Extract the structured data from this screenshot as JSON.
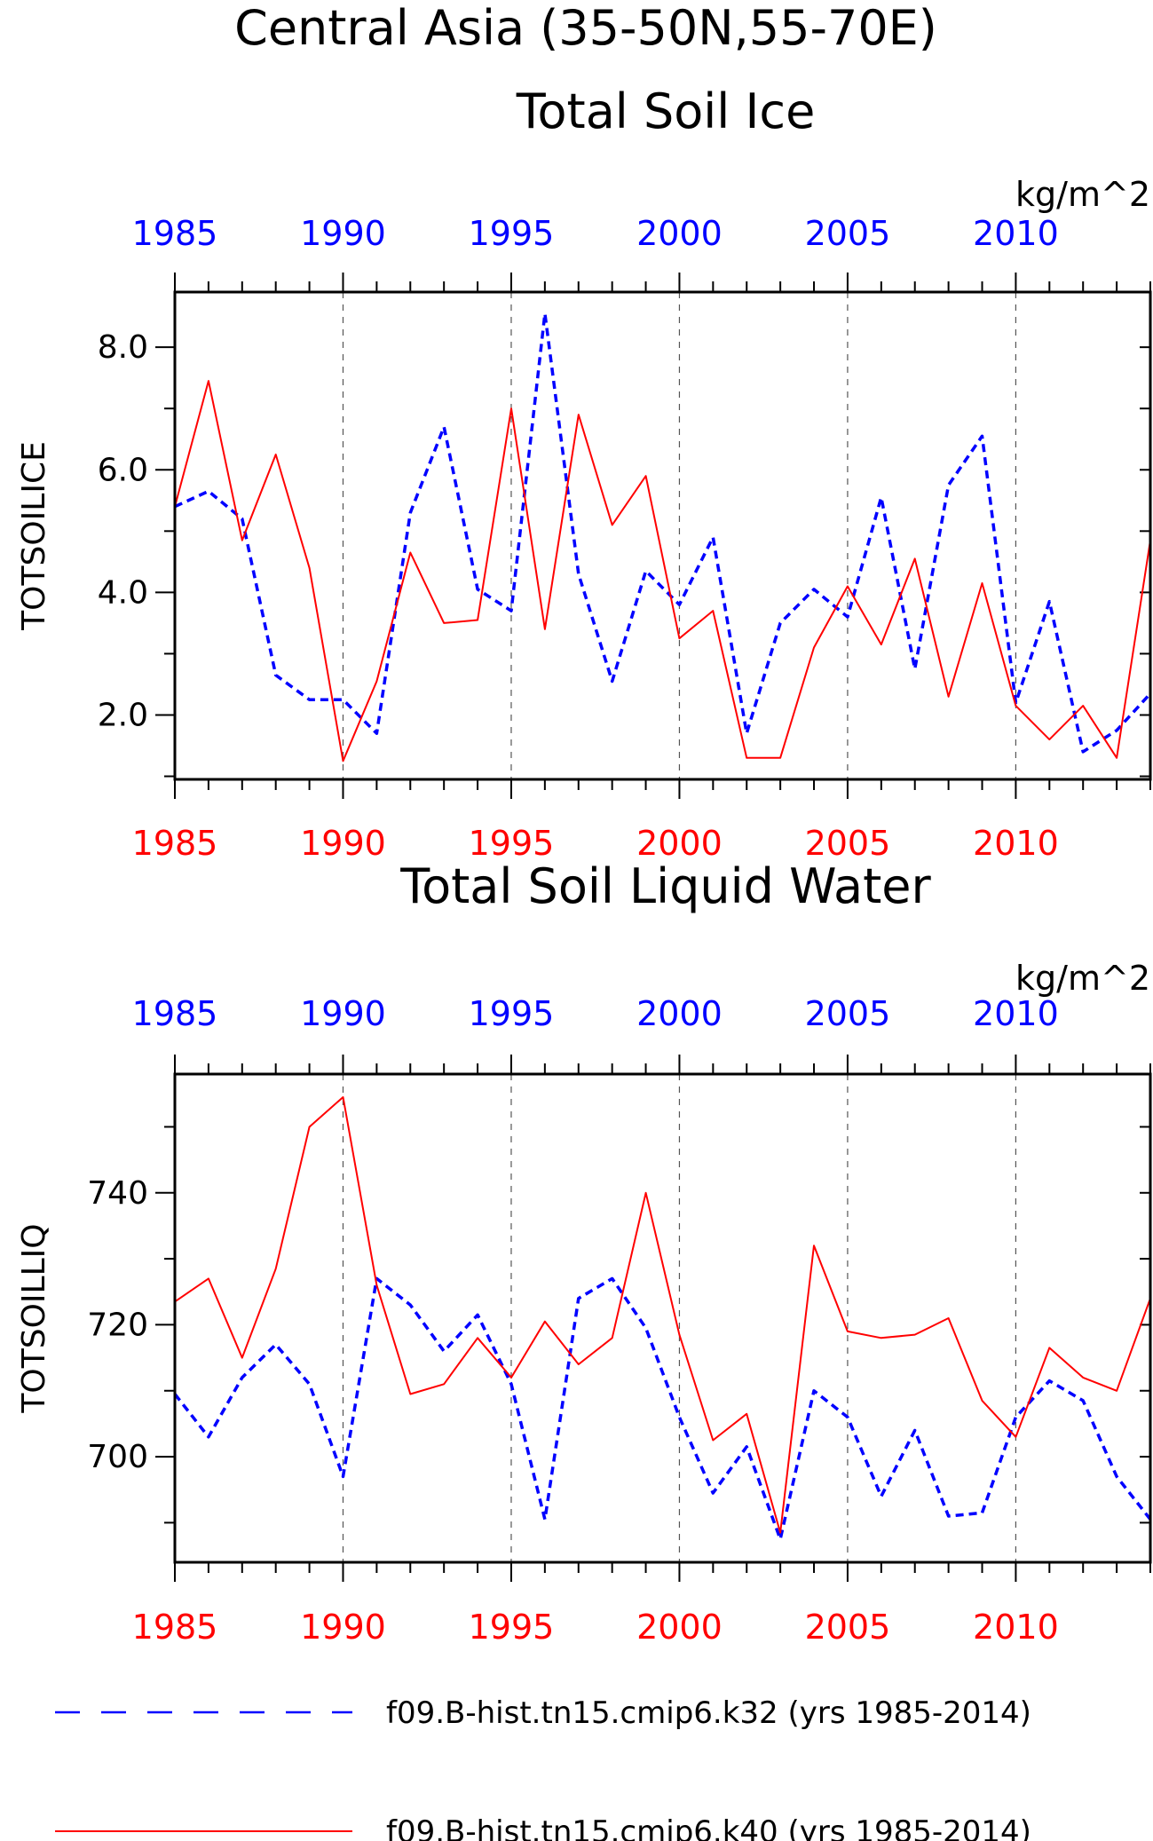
{
  "title": "Central Asia (35-50N,55-70E)",
  "colors": {
    "k32": "#0000ff",
    "k40": "#ff0000",
    "axis": "#000000",
    "grid": "#555555"
  },
  "chart_data": [
    {
      "type": "line",
      "title": "Total Soil Ice",
      "units": "kg/m^2",
      "ylabel": "TOTSOILICE",
      "xlim": [
        1985,
        2014
      ],
      "ylim": [
        0.95,
        8.9
      ],
      "yticks": [
        "2.0",
        "4.0",
        "6.0",
        "8.0"
      ],
      "xticks": [
        "1985",
        "1990",
        "1995",
        "2000",
        "2005",
        "2010"
      ],
      "grid": "vertical dashed lines at 1990, 1995, 2000, 2005, 2010",
      "x": [
        1985,
        1986,
        1987,
        1988,
        1989,
        1990,
        1991,
        1992,
        1993,
        1994,
        1995,
        1996,
        1997,
        1998,
        1999,
        2000,
        2001,
        2002,
        2003,
        2004,
        2005,
        2006,
        2007,
        2008,
        2009,
        2010,
        2011,
        2012,
        2013,
        2014
      ],
      "series": [
        {
          "name": "f09.B-hist.tn15.cmip6.k32 (yrs 1985-2014)",
          "style": "dashed",
          "color": "#0000ff",
          "values": [
            5.4,
            5.65,
            5.2,
            2.65,
            2.25,
            2.25,
            1.7,
            5.3,
            6.7,
            4.05,
            3.7,
            8.55,
            4.3,
            2.55,
            4.35,
            3.8,
            4.9,
            1.7,
            3.5,
            4.05,
            3.6,
            5.55,
            2.75,
            5.75,
            6.55,
            2.2,
            3.85,
            1.4,
            1.75,
            2.35
          ]
        },
        {
          "name": "f09.B-hist.tn15.cmip6.k40 (yrs 1985-2014)",
          "style": "solid",
          "color": "#ff0000",
          "values": [
            5.4,
            7.45,
            4.85,
            6.25,
            4.4,
            1.25,
            2.55,
            4.65,
            3.5,
            3.55,
            7.0,
            3.4,
            6.9,
            5.1,
            5.9,
            3.25,
            3.7,
            1.3,
            1.3,
            3.1,
            4.1,
            3.15,
            4.55,
            2.3,
            4.15,
            2.15,
            1.6,
            2.15,
            1.3,
            4.85
          ]
        }
      ]
    },
    {
      "type": "line",
      "title": "Total Soil Liquid Water",
      "units": "kg/m^2",
      "ylabel": "TOTSOILLIQ",
      "xlim": [
        1985,
        2014
      ],
      "ylim": [
        684,
        758
      ],
      "yticks": [
        "700",
        "720",
        "740"
      ],
      "xticks": [
        "1985",
        "1990",
        "1995",
        "2000",
        "2005",
        "2010"
      ],
      "grid": "vertical dashed lines at 1990, 1995, 2000, 2005, 2010",
      "x": [
        1985,
        1986,
        1987,
        1988,
        1989,
        1990,
        1991,
        1992,
        1993,
        1994,
        1995,
        1996,
        1997,
        1998,
        1999,
        2000,
        2001,
        2002,
        2003,
        2004,
        2005,
        2006,
        2007,
        2008,
        2009,
        2010,
        2011,
        2012,
        2013,
        2014
      ],
      "series": [
        {
          "name": "f09.B-hist.tn15.cmip6.k32 (yrs 1985-2014)",
          "style": "dashed",
          "color": "#0000ff",
          "values": [
            709.5,
            703,
            712,
            717,
            711,
            697,
            727,
            723,
            716,
            721.5,
            711,
            690.5,
            724,
            727,
            719.5,
            706,
            694.5,
            701.5,
            687.5,
            710,
            706,
            694,
            704,
            691,
            691.5,
            706,
            711.5,
            708.5,
            697,
            690.5
          ]
        },
        {
          "name": "f09.B-hist.tn15.cmip6.k40 (yrs 1985-2014)",
          "style": "solid",
          "color": "#ff0000",
          "values": [
            723.5,
            727,
            715,
            728.5,
            750,
            754.5,
            726,
            709.5,
            711,
            718,
            712,
            720.5,
            714,
            718,
            740,
            718.5,
            702.5,
            706.5,
            688.5,
            732,
            719,
            718,
            718.5,
            721,
            708.5,
            703,
            716.5,
            712,
            710,
            724
          ]
        }
      ]
    }
  ],
  "legend": [
    {
      "label": "f09.B-hist.tn15.cmip6.k32 (yrs 1985-2014)",
      "style": "dashed",
      "color": "#0000ff"
    },
    {
      "label": "f09.B-hist.tn15.cmip6.k40 (yrs 1985-2014)",
      "style": "solid",
      "color": "#ff0000"
    }
  ]
}
